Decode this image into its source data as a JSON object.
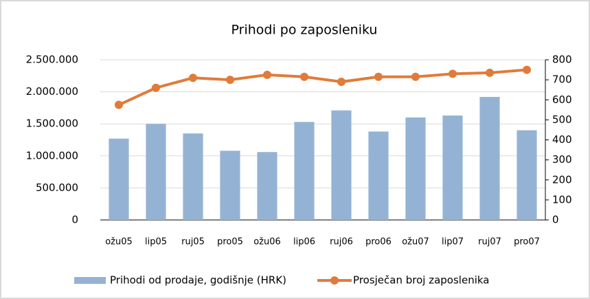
{
  "chart_data": {
    "type": "bar-line",
    "title": "Prihodi po zaposleniku",
    "categories": [
      "ožu05",
      "lip05",
      "ruj05",
      "pro05",
      "ožu06",
      "lip06",
      "ruj06",
      "pro06",
      "ožu07",
      "lip07",
      "ruj07",
      "pro07"
    ],
    "series": [
      {
        "name": "Prihodi od prodaje, godišnje (HRK)",
        "color": "#94b3d4",
        "type": "bar",
        "values": [
          1270000,
          1500000,
          1350000,
          1080000,
          1060000,
          1530000,
          1710000,
          1380000,
          1600000,
          1630000,
          1920000,
          1400000
        ]
      },
      {
        "name": "Prosječan broj zaposlenika",
        "color": "#e07b39",
        "type": "line",
        "axis": "y2",
        "values": [
          575,
          660,
          710,
          700,
          725,
          715,
          690,
          715,
          715,
          730,
          735,
          750
        ]
      }
    ],
    "ylim": [
      0,
      2500000
    ],
    "yticks": [
      0,
      {
        "value": 500000,
        "label": "500.000"
      },
      {
        "value": 1000000,
        "label": "1.000.000"
      },
      {
        "value": 1500000,
        "label": "1.500.000"
      },
      {
        "value": 2000000,
        "label": "2.000.000"
      },
      {
        "value": 2500000,
        "label": "2.500.000"
      }
    ],
    "y2lim": [
      0,
      800
    ],
    "y2ticks": [
      0,
      100,
      200,
      300,
      400,
      500,
      600,
      700,
      800
    ],
    "grid": true
  }
}
